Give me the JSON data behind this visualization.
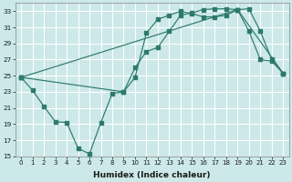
{
  "xlabel": "Humidex (Indice chaleur)",
  "bg_color": "#cce8e8",
  "grid_color": "#ffffff",
  "line_color": "#2d7a6b",
  "xlim": [
    -0.5,
    23.5
  ],
  "ylim": [
    15,
    34
  ],
  "yticks": [
    15,
    17,
    19,
    21,
    23,
    25,
    27,
    29,
    31,
    33
  ],
  "xticks": [
    0,
    1,
    2,
    3,
    4,
    5,
    6,
    7,
    8,
    9,
    10,
    11,
    12,
    13,
    14,
    15,
    16,
    17,
    18,
    19,
    20,
    21,
    22,
    23
  ],
  "line1_x": [
    0,
    1,
    2,
    3,
    4,
    5,
    6,
    7,
    8,
    9,
    10,
    11,
    12,
    13,
    14,
    15,
    16,
    17,
    18,
    19,
    20,
    21,
    22,
    23
  ],
  "line1_y": [
    24.8,
    23.2,
    21.2,
    19.3,
    19.2,
    16.0,
    15.3,
    19.2,
    22.8,
    23.0,
    24.8,
    30.3,
    32.0,
    32.5,
    33.0,
    32.7,
    32.3,
    32.3,
    32.5,
    33.2,
    30.5,
    27.0,
    26.8,
    25.3
  ],
  "line2_x": [
    0,
    9,
    10,
    11,
    12,
    13,
    14,
    15,
    16,
    17,
    18,
    19,
    20,
    21,
    22,
    23
  ],
  "line2_y": [
    24.8,
    23.0,
    26.0,
    28.0,
    28.5,
    30.5,
    32.5,
    32.8,
    33.2,
    33.3,
    33.3,
    33.2,
    33.3,
    30.5,
    27.0,
    25.3
  ],
  "line3_x": [
    0,
    19,
    23
  ],
  "line3_y": [
    24.8,
    33.2,
    25.3
  ]
}
